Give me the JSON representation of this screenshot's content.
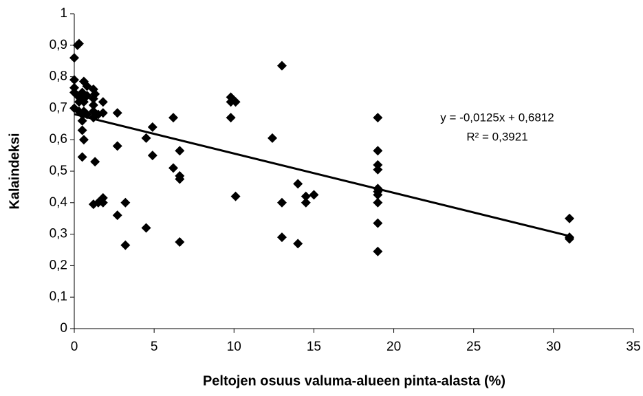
{
  "chart_data": {
    "type": "scatter",
    "x_label": "Peltojen osuus valuma-alueen pinta-alasta (%)",
    "y_label": "Kalaindeksi",
    "annotations": [
      "y = -0,0125x + 0,6812",
      "R² = 0,3921"
    ],
    "color": "#000000",
    "xlim": [
      0,
      35
    ],
    "xticks": [
      0,
      5,
      10,
      15,
      20,
      25,
      30,
      35
    ],
    "ylim": [
      0,
      1
    ],
    "yticks": [
      0,
      {
        "value": 0.1,
        "label": "0,1"
      },
      {
        "value": 0.2,
        "label": "0,2"
      },
      {
        "value": 0.3,
        "label": "0,3"
      },
      {
        "value": 0.4,
        "label": "0,4"
      },
      {
        "value": 0.5,
        "label": "0,5"
      },
      {
        "value": 0.6,
        "label": "0,6"
      },
      {
        "value": 0.7,
        "label": "0,7"
      },
      {
        "value": 0.8,
        "label": "0,8"
      },
      {
        "value": 0.9,
        "label": "0,9"
      },
      1
    ],
    "grid": false,
    "x": [
      0,
      0,
      0,
      0,
      0,
      0.2,
      0.2,
      0.3,
      0.3,
      0.3,
      0.5,
      0.5,
      0.5,
      0.5,
      0.5,
      0.5,
      0.6,
      0.6,
      0.6,
      0.6,
      0.8,
      0.8,
      0.8,
      1.2,
      1.2,
      1.2,
      1.2,
      1.2,
      1.2,
      1.3,
      1.3,
      1.5,
      1.5,
      1.8,
      1.8,
      1.8,
      1.8,
      2.7,
      2.7,
      2.7,
      3.2,
      3.2,
      4.5,
      4.5,
      4.9,
      4.9,
      6.2,
      6.2,
      6.6,
      6.6,
      6.6,
      6.6,
      9.8,
      9.8,
      9.8,
      10.1,
      10.1,
      12.4,
      13,
      13,
      13,
      14,
      14,
      14.5,
      14.5,
      15,
      19,
      19,
      19,
      19,
      19,
      19,
      19,
      19,
      19,
      19,
      31,
      31,
      31
    ],
    "values": [
      0.86,
      0.79,
      0.765,
      0.75,
      0.7,
      0.9,
      0.74,
      0.905,
      0.72,
      0.69,
      0.75,
      0.73,
      0.68,
      0.66,
      0.63,
      0.545,
      0.785,
      0.72,
      0.6,
      0.69,
      0.77,
      0.74,
      0.68,
      0.76,
      0.73,
      0.71,
      0.69,
      0.67,
      0.395,
      0.745,
      0.53,
      0.4,
      0.68,
      0.72,
      0.685,
      0.415,
      0.4,
      0.685,
      0.58,
      0.36,
      0.4,
      0.265,
      0.605,
      0.32,
      0.64,
      0.55,
      0.67,
      0.51,
      0.565,
      0.485,
      0.475,
      0.275,
      0.735,
      0.72,
      0.67,
      0.72,
      0.42,
      0.605,
      0.835,
      0.4,
      0.29,
      0.46,
      0.27,
      0.42,
      0.4,
      0.425,
      0.67,
      0.565,
      0.52,
      0.505,
      0.445,
      0.435,
      0.425,
      0.4,
      0.335,
      0.245,
      0.35,
      0.29,
      0.285
    ],
    "trendline": {
      "x": [
        0,
        31
      ],
      "values": [
        0.681,
        0.294
      ]
    }
  }
}
